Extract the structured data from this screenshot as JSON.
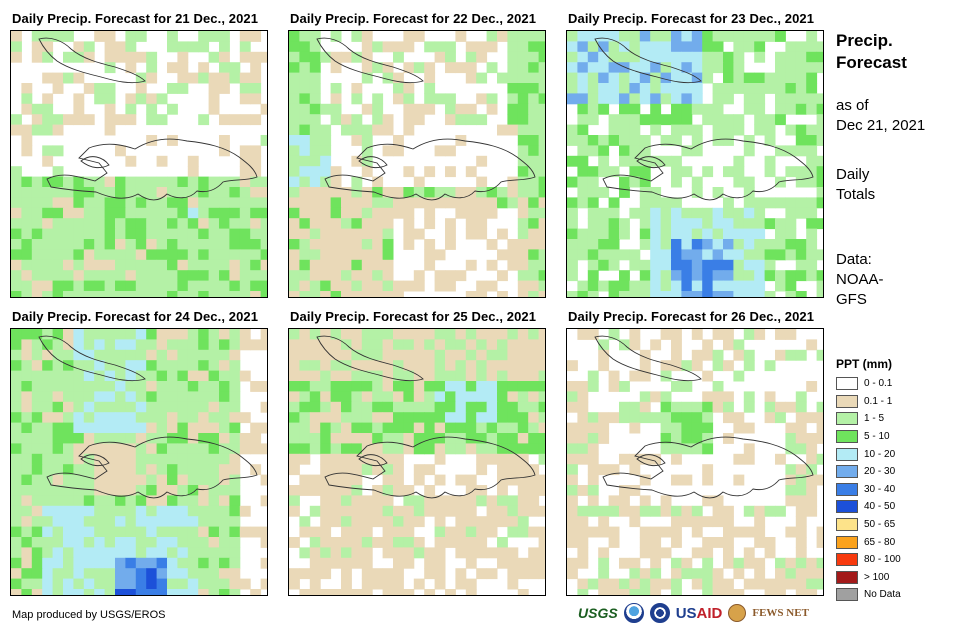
{
  "panels": [
    {
      "title": "Daily Precip. Forecast for 21 Dec., 2021",
      "day": 21
    },
    {
      "title": "Daily Precip. Forecast for 22 Dec., 2021",
      "day": 22
    },
    {
      "title": "Daily Precip. Forecast for 23 Dec., 2021",
      "day": 23
    },
    {
      "title": "Daily Precip. Forecast for 24 Dec., 2021",
      "day": 24
    },
    {
      "title": "Daily Precip. Forecast for 25 Dec., 2021",
      "day": 25
    },
    {
      "title": "Daily Precip. Forecast for 26 Dec., 2021",
      "day": 26
    }
  ],
  "side": {
    "title_line1": "Precip.",
    "title_line2": "Forecast",
    "asof_line1": "as of",
    "asof_line2": "Dec 21, 2021",
    "daily_line1": "Daily",
    "daily_line2": "Totals",
    "data_line1": "Data:",
    "data_line2": "NOAA-",
    "data_line3": "GFS"
  },
  "legend": {
    "title": "PPT (mm)",
    "items": [
      {
        "label": "0 - 0.1",
        "color": "#ffffff"
      },
      {
        "label": "0.1 - 1",
        "color": "#ead9b8"
      },
      {
        "label": "1 - 5",
        "color": "#b4f1a6"
      },
      {
        "label": "5 - 10",
        "color": "#6fe35d"
      },
      {
        "label": "10 - 20",
        "color": "#b3ebf5"
      },
      {
        "label": "20 - 30",
        "color": "#72acec"
      },
      {
        "label": "30 - 40",
        "color": "#3a7ee6"
      },
      {
        "label": "40 - 50",
        "color": "#1c50d9"
      },
      {
        "label": "50 - 65",
        "color": "#fde38a"
      },
      {
        "label": "65 - 80",
        "color": "#fba21c"
      },
      {
        "label": "80 - 100",
        "color": "#f83a0e"
      },
      {
        "label": "> 100",
        "color": "#a31a1a"
      },
      {
        "label": "No Data",
        "color": "#a0a0a0"
      }
    ]
  },
  "footer": {
    "credit": "Map produced by USGS/EROS",
    "logo_usgs": "USGS",
    "logo_usaid_a": "US",
    "logo_usaid_b": "AID",
    "logo_fews": "FEWS NET"
  }
}
